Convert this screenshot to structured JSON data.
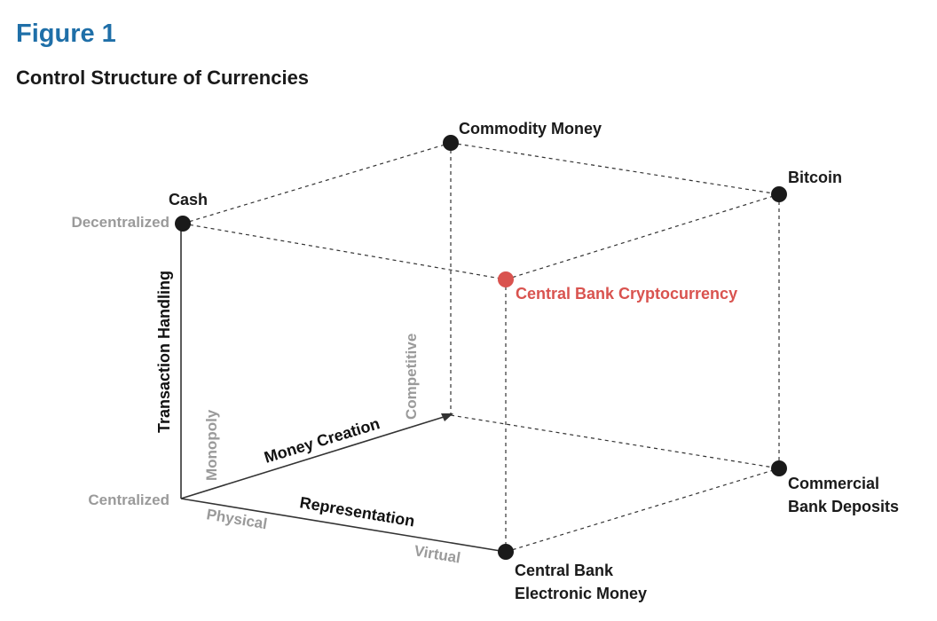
{
  "header": {
    "figure_label": "Figure 1",
    "title": "Control Structure of Currencies"
  },
  "axes": {
    "vertical": {
      "label": "Transaction Handling",
      "low": "Centralized",
      "high": "Decentralized"
    },
    "depth": {
      "label": "Money Creation",
      "low": "Monopoly",
      "high": "Competitive"
    },
    "horizontal": {
      "label": "Representation",
      "low": "Physical",
      "high": "Virtual"
    }
  },
  "nodes": {
    "cash": {
      "label": "Cash",
      "color": "#1a1a1a"
    },
    "commodity_money": {
      "label": "Commodity Money",
      "color": "#1a1a1a"
    },
    "bitcoin": {
      "label": "Bitcoin",
      "color": "#1a1a1a"
    },
    "cbcc": {
      "label": "Central Bank Cryptocurrency",
      "color": "#d9534f"
    },
    "commercial_deposits": {
      "line1": "Commercial",
      "line2": "Bank Deposits",
      "color": "#1a1a1a"
    },
    "cb_electronic": {
      "line1": "Central Bank",
      "line2": "Electronic Money",
      "color": "#1a1a1a"
    }
  },
  "colors": {
    "accent": "#1f6fa8",
    "highlight": "#d9534f",
    "muted": "#9a9a9a"
  }
}
